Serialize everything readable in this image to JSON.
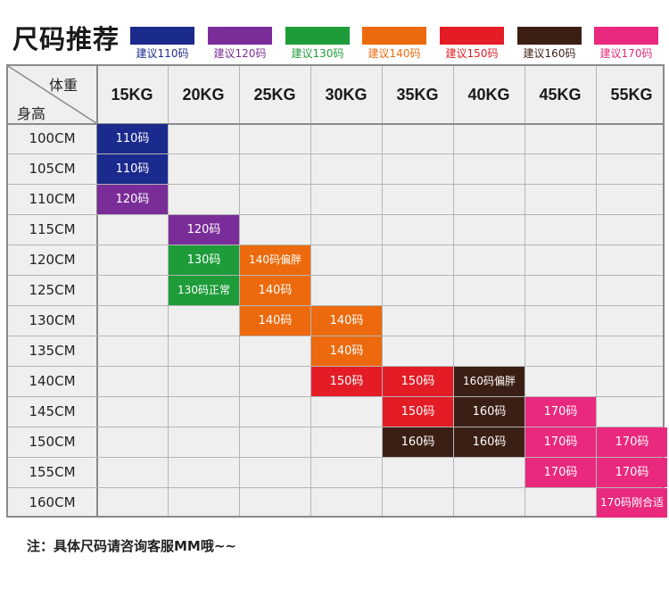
{
  "header": {
    "title": "尺码推荐",
    "legend": [
      {
        "label": "建议110码",
        "color": "#1b2a8d"
      },
      {
        "label": "建议120码",
        "color": "#7a2d98"
      },
      {
        "label": "建议130码",
        "color": "#1e9c3a"
      },
      {
        "label": "建议140码",
        "color": "#ec6a0d"
      },
      {
        "label": "建议150码",
        "color": "#e31c25"
      },
      {
        "label": "建议160码",
        "color": "#3c1f14"
      },
      {
        "label": "建议170码",
        "color": "#e8297d"
      }
    ]
  },
  "table": {
    "corner": {
      "weight_label": "体重",
      "height_label": "身高"
    },
    "weights": [
      "15KG",
      "20KG",
      "25KG",
      "30KG",
      "35KG",
      "40KG",
      "45KG",
      "55KG"
    ],
    "heights": [
      "100CM",
      "105CM",
      "110CM",
      "115CM",
      "120CM",
      "125CM",
      "130CM",
      "135CM",
      "140CM",
      "145CM",
      "150CM",
      "155CM",
      "160CM"
    ],
    "cells": [
      {
        "row": 0,
        "col": 0,
        "text": "110码",
        "color": "#1b2a8d"
      },
      {
        "row": 1,
        "col": 0,
        "text": "110码",
        "color": "#1b2a8d"
      },
      {
        "row": 2,
        "col": 0,
        "text": "120码",
        "color": "#7a2d98"
      },
      {
        "row": 3,
        "col": 1,
        "text": "120码",
        "color": "#7a2d98"
      },
      {
        "row": 4,
        "col": 1,
        "text": "130码",
        "color": "#1e9c3a"
      },
      {
        "row": 4,
        "col": 2,
        "text": "140码偏胖",
        "color": "#ec6a0d"
      },
      {
        "row": 5,
        "col": 1,
        "text": "130码正常",
        "color": "#1e9c3a"
      },
      {
        "row": 5,
        "col": 2,
        "text": "140码",
        "color": "#ec6a0d"
      },
      {
        "row": 6,
        "col": 2,
        "text": "140码",
        "color": "#ec6a0d"
      },
      {
        "row": 6,
        "col": 3,
        "text": "140码",
        "color": "#ec6a0d"
      },
      {
        "row": 7,
        "col": 3,
        "text": "140码",
        "color": "#ec6a0d"
      },
      {
        "row": 8,
        "col": 3,
        "text": "150码",
        "color": "#e31c25"
      },
      {
        "row": 8,
        "col": 4,
        "text": "150码",
        "color": "#e31c25"
      },
      {
        "row": 8,
        "col": 5,
        "text": "160码偏胖",
        "color": "#3c1f14"
      },
      {
        "row": 9,
        "col": 4,
        "text": "150码",
        "color": "#e31c25"
      },
      {
        "row": 9,
        "col": 5,
        "text": "160码",
        "color": "#3c1f14"
      },
      {
        "row": 9,
        "col": 6,
        "text": "170码",
        "color": "#e8297d"
      },
      {
        "row": 10,
        "col": 4,
        "text": "160码",
        "color": "#3c1f14"
      },
      {
        "row": 10,
        "col": 5,
        "text": "160码",
        "color": "#3c1f14"
      },
      {
        "row": 10,
        "col": 6,
        "text": "170码",
        "color": "#e8297d"
      },
      {
        "row": 10,
        "col": 7,
        "text": "170码",
        "color": "#e8297d"
      },
      {
        "row": 11,
        "col": 6,
        "text": "170码",
        "color": "#e8297d"
      },
      {
        "row": 11,
        "col": 7,
        "text": "170码",
        "color": "#e8297d"
      },
      {
        "row": 12,
        "col": 7,
        "text": "170码刚合适",
        "color": "#e8297d"
      }
    ]
  },
  "note": "注：具体尺码请咨询客服MM哦~~"
}
